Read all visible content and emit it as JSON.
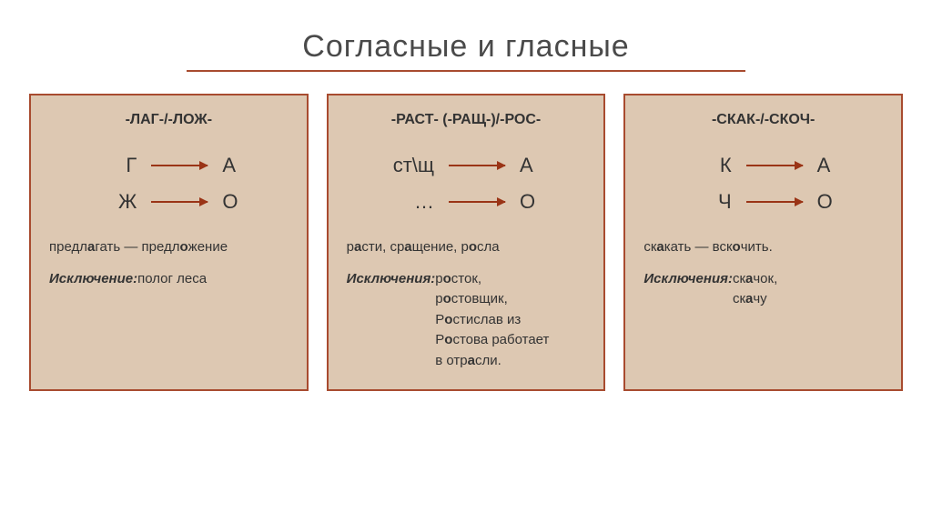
{
  "title": "Согласные и гласные",
  "colors": {
    "underline": "#a84b2f",
    "arrow": "#9a3416",
    "card_border": "#a84b2f",
    "card_bg": "#ddc8b2",
    "text": "#333333"
  },
  "layout": {
    "card_count": 3,
    "title_fontsize": 34,
    "card_title_fontsize": 16,
    "rule_fontsize": 22,
    "body_fontsize": 15
  },
  "cards": [
    {
      "title": "-ЛАГ-/-ЛОЖ-",
      "rules": [
        {
          "left": "Г",
          "right": "А"
        },
        {
          "left": "Ж",
          "right": "О"
        }
      ],
      "examples_html": "предл<b>а</b>гать — предл<b>о</b>жение",
      "exc_label": "Исключение:",
      "exc_html": " полог леса"
    },
    {
      "title": "-РАСТ- (-РАЩ-)/-РОС-",
      "rules": [
        {
          "left": "ст\\щ",
          "right": "А"
        },
        {
          "left": "…",
          "right": "О"
        }
      ],
      "examples_html": "р<b>а</b>сти, ср<b>а</b>щение, р<b>о</b>сла",
      "exc_label": "Исключения:",
      "exc_html": " р<b>о</b>сток,<br>р<b>о</b>стовщик,<br>Р<b>о</b>стислав из<br>Р<b>о</b>стова работает<br>в отр<b>а</b>сли."
    },
    {
      "title": "-СКАК-/-СКОЧ-",
      "rules": [
        {
          "left": "К",
          "right": "А"
        },
        {
          "left": "Ч",
          "right": "О"
        }
      ],
      "examples_html": "ск<b>а</b>кать — вск<b>о</b>чить.",
      "exc_label": "Исключения:",
      "exc_html": "   ск<b>а</b>чок,<br>ск<b>а</b>чу"
    }
  ]
}
